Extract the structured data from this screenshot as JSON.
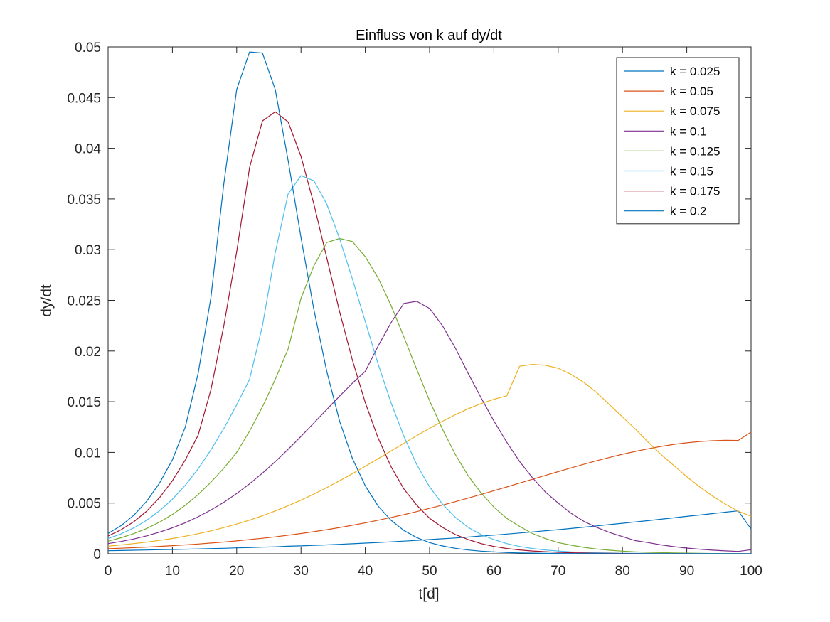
{
  "chart_data": {
    "type": "line",
    "title": "Einfluss von k auf dy/dt",
    "xlabel": "t[d]",
    "ylabel": "dy/dt",
    "xlim": [
      0,
      100
    ],
    "ylim": [
      0,
      0.05
    ],
    "xticks": [
      0,
      10,
      20,
      30,
      40,
      50,
      60,
      70,
      80,
      90,
      100
    ],
    "xtick_labels": [
      "0",
      "10",
      "20",
      "30",
      "40",
      "50",
      "60",
      "70",
      "80",
      "90",
      "100"
    ],
    "yticks": [
      0,
      0.005,
      0.01,
      0.015,
      0.02,
      0.025,
      0.03,
      0.035,
      0.04,
      0.045,
      0.05
    ],
    "ytick_labels": [
      "0",
      "0.005",
      "0.01",
      "0.015",
      "0.02",
      "0.025",
      "0.03",
      "0.035",
      "0.04",
      "0.045",
      "0.05"
    ],
    "grid": false,
    "legend_position": "top-right",
    "x": [
      0,
      2,
      4,
      6,
      8,
      10,
      12,
      14,
      16,
      18,
      20,
      22,
      24,
      26,
      28,
      30,
      32,
      34,
      36,
      38,
      40,
      42,
      44,
      46,
      48,
      50,
      52,
      54,
      56,
      58,
      60,
      62,
      64,
      66,
      68,
      70,
      72,
      74,
      76,
      78,
      80,
      82,
      84,
      86,
      88,
      90,
      92,
      94,
      96,
      98,
      100
    ],
    "series": [
      {
        "name": "k = 0.025",
        "color": "#0072BD",
        "values": [
          0.0003,
          0.00032,
          0.00035,
          0.00037,
          0.0004,
          0.00042,
          0.00045,
          0.00048,
          0.00051,
          0.00054,
          0.00058,
          0.00061,
          0.00065,
          0.00069,
          0.00074,
          0.00078,
          0.00083,
          0.00088,
          0.00093,
          0.00099,
          0.00105,
          0.00111,
          0.00118,
          0.00125,
          0.00132,
          0.0014,
          0.00148,
          0.00156,
          0.00165,
          0.00175,
          0.00184,
          0.00194,
          0.00205,
          0.00215,
          0.00227,
          0.00238,
          0.0025,
          0.00262,
          0.00275,
          0.00288,
          0.00301,
          0.00314,
          0.00327,
          0.00341,
          0.00355,
          0.00369,
          0.00382,
          0.00396,
          0.0041,
          0.00423,
          0.00244
        ]
      },
      {
        "name": "k = 0.05",
        "color": "#D95319",
        "values": [
          0.0005,
          0.00055,
          0.0006,
          0.00066,
          0.00073,
          0.0008,
          0.00088,
          0.00096,
          0.00106,
          0.00116,
          0.00127,
          0.0014,
          0.00153,
          0.00167,
          0.00183,
          0.002,
          0.00218,
          0.00238,
          0.00259,
          0.00281,
          0.00305,
          0.00331,
          0.00358,
          0.00386,
          0.00416,
          0.00448,
          0.0048,
          0.00514,
          0.00549,
          0.00585,
          0.00622,
          0.00659,
          0.00697,
          0.00735,
          0.00773,
          0.0081,
          0.00847,
          0.00883,
          0.00918,
          0.00951,
          0.00982,
          0.0101,
          0.01036,
          0.01059,
          0.01079,
          0.01095,
          0.01107,
          0.01115,
          0.01119,
          0.01118,
          0.012
        ]
      },
      {
        "name": "k = 0.075",
        "color": "#EDB120",
        "values": [
          0.00075,
          0.00087,
          0.001,
          0.00115,
          0.00132,
          0.00151,
          0.00173,
          0.00198,
          0.00226,
          0.00258,
          0.00293,
          0.00332,
          0.00375,
          0.00422,
          0.00474,
          0.00529,
          0.00589,
          0.00653,
          0.0072,
          0.0079,
          0.00863,
          0.00938,
          0.01014,
          0.0109,
          0.01165,
          0.01238,
          0.01307,
          0.01372,
          0.0143,
          0.01481,
          0.01524,
          0.01558,
          0.0185,
          0.01868,
          0.0186,
          0.0183,
          0.0177,
          0.0169,
          0.0159,
          0.0147,
          0.0135,
          0.0123,
          0.011,
          0.0098,
          0.0087,
          0.0076,
          0.0066,
          0.0057,
          0.0049,
          0.0042,
          0.0037
        ]
      },
      {
        "name": "k = 0.1",
        "color": "#7E2F8E",
        "values": [
          0.001,
          0.00121,
          0.00146,
          0.00177,
          0.00213,
          0.00256,
          0.00306,
          0.00365,
          0.00432,
          0.00508,
          0.00594,
          0.0069,
          0.00795,
          0.00909,
          0.0103,
          0.01158,
          0.0129,
          0.01423,
          0.01555,
          0.01683,
          0.018,
          0.0205,
          0.0228,
          0.0247,
          0.0249,
          0.0242,
          0.0225,
          0.0203,
          0.0178,
          0.0154,
          0.0131,
          0.011,
          0.0091,
          0.0075,
          0.0061,
          0.005,
          0.004,
          0.0032,
          0.0026,
          0.0021,
          0.0017,
          0.0013,
          0.0011,
          0.00088,
          0.0007,
          0.00056,
          0.00045,
          0.00036,
          0.00029,
          0.00023,
          0.0004
        ]
      },
      {
        "name": "k = 0.125",
        "color": "#77AC30",
        "values": [
          0.00125,
          0.00158,
          0.00199,
          0.0025,
          0.00312,
          0.00388,
          0.00478,
          0.00584,
          0.00706,
          0.00844,
          0.01,
          0.0121,
          0.0145,
          0.0172,
          0.0202,
          0.0252,
          0.0284,
          0.0307,
          0.0311,
          0.0308,
          0.0293,
          0.0272,
          0.0245,
          0.0214,
          0.0182,
          0.0151,
          0.0123,
          0.0098,
          0.0077,
          0.006,
          0.0046,
          0.0035,
          0.0027,
          0.002,
          0.0015,
          0.0011,
          0.00085,
          0.00063,
          0.00047,
          0.00035,
          0.00026,
          0.00019,
          0.00014,
          0.00011,
          8e-05,
          6e-05,
          4e-05,
          3e-05,
          2e-05,
          2e-05,
          1e-05
        ]
      },
      {
        "name": "k = 0.15",
        "color": "#4DBEEE",
        "values": [
          0.0015,
          0.00196,
          0.00255,
          0.0033,
          0.00424,
          0.00538,
          0.00676,
          0.00838,
          0.01025,
          0.01235,
          0.0147,
          0.0172,
          0.0225,
          0.0297,
          0.0355,
          0.0373,
          0.0368,
          0.0345,
          0.0311,
          0.0271,
          0.0229,
          0.0187,
          0.0149,
          0.0116,
          0.0088,
          0.0066,
          0.0049,
          0.0036,
          0.0026,
          0.0019,
          0.0014,
          0.001,
          0.00072,
          0.00052,
          0.00037,
          0.00027,
          0.00019,
          0.00014,
          0.0001,
          7e-05,
          5e-05,
          4e-05,
          3e-05,
          2e-05,
          1e-05,
          1e-05,
          1e-05,
          1e-05,
          0,
          0,
          0
        ]
      },
      {
        "name": "k = 0.175",
        "color": "#A2142F",
        "values": [
          0.00175,
          0.00236,
          0.00316,
          0.0042,
          0.00553,
          0.0072,
          0.00925,
          0.0117,
          0.0162,
          0.0225,
          0.0298,
          0.0381,
          0.0427,
          0.0436,
          0.0426,
          0.0392,
          0.0345,
          0.0292,
          0.0239,
          0.0191,
          0.0149,
          0.0114,
          0.0086,
          0.0064,
          0.0048,
          0.0035,
          0.0026,
          0.0019,
          0.0014,
          0.001,
          0.00072,
          0.00052,
          0.00038,
          0.00027,
          0.0002,
          0.00014,
          0.0001,
          7e-05,
          5e-05,
          4e-05,
          3e-05,
          2e-05,
          1e-05,
          1e-05,
          1e-05,
          1e-05,
          0,
          0,
          0,
          0,
          0
        ]
      },
      {
        "name": "k = 0.2",
        "color": "#0072BD",
        "values": [
          0.002,
          0.00277,
          0.0038,
          0.00518,
          0.00697,
          0.00927,
          0.0125,
          0.0178,
          0.0253,
          0.0365,
          0.0458,
          0.0495,
          0.0494,
          0.0458,
          0.0388,
          0.0312,
          0.0241,
          0.018,
          0.0131,
          0.0094,
          0.0067,
          0.0047,
          0.0033,
          0.0023,
          0.0016,
          0.0011,
          0.00077,
          0.00054,
          0.00037,
          0.00026,
          0.00018,
          0.00012,
          8e-05,
          6e-05,
          4e-05,
          3e-05,
          2e-05,
          1e-05,
          1e-05,
          1e-05,
          0,
          0,
          0,
          0,
          0,
          0,
          0,
          0,
          0,
          0,
          0
        ]
      }
    ]
  }
}
